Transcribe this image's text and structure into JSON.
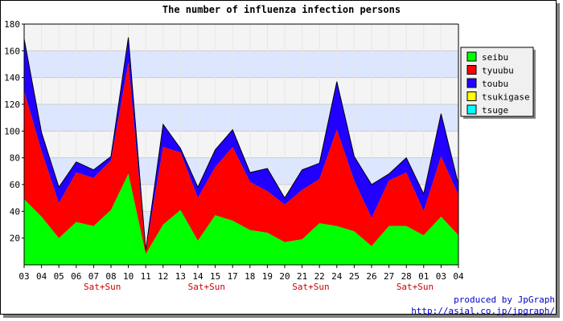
{
  "chart_data": {
    "type": "area",
    "stacked": true,
    "title": "The number of influenza infection persons",
    "xlabel": "",
    "ylabel": "",
    "ylim": [
      0,
      180
    ],
    "yticks": [
      20,
      40,
      60,
      80,
      100,
      120,
      140,
      160,
      180
    ],
    "grid": true,
    "legend_position": "top-right",
    "categories": [
      "03",
      "04",
      "05",
      "06",
      "07",
      "08",
      "10",
      "11",
      "12",
      "13",
      "14",
      "15",
      "17",
      "18",
      "19",
      "20",
      "21",
      "22",
      "24",
      "25",
      "26",
      "27",
      "28",
      "01",
      "03",
      "04"
    ],
    "weekend_marks": [
      {
        "category_index": 4,
        "label": "Sat+Sun"
      },
      {
        "category_index": 10,
        "label": "Sat+Sun"
      },
      {
        "category_index": 16,
        "label": "Sat+Sun"
      },
      {
        "category_index": 22,
        "label": "Sat+Sun"
      }
    ],
    "series": [
      {
        "name": "seibu",
        "color": "#00ff00",
        "values": [
          49,
          36,
          20,
          32,
          29,
          41,
          68,
          8,
          30,
          41,
          18,
          37,
          33,
          26,
          24,
          17,
          19,
          31,
          29,
          25,
          14,
          29,
          29,
          22,
          36,
          22
        ]
      },
      {
        "name": "tyuubu",
        "color": "#ff0000",
        "values": [
          81,
          49,
          26,
          37,
          36,
          37,
          83,
          2,
          58,
          43,
          32,
          36,
          55,
          36,
          31,
          28,
          37,
          33,
          72,
          38,
          21,
          34,
          40,
          18,
          45,
          30
        ]
      },
      {
        "name": "toubu",
        "color": "#2200ff",
        "values": [
          39,
          14,
          12,
          8,
          6,
          3,
          19,
          1,
          17,
          3,
          8,
          13,
          13,
          7,
          17,
          5,
          15,
          12,
          36,
          18,
          25,
          5,
          11,
          13,
          32,
          8
        ]
      },
      {
        "name": "tsukigase",
        "color": "#ffff00",
        "values": [
          0,
          0,
          0,
          0,
          0,
          0,
          0,
          0,
          0,
          0,
          0,
          0,
          0,
          0,
          0,
          0,
          0,
          0,
          0,
          0,
          0,
          0,
          0,
          0,
          0,
          0
        ]
      },
      {
        "name": "tsuge",
        "color": "#00ffff",
        "values": [
          0,
          0,
          0,
          0,
          0,
          0,
          0,
          0,
          0,
          0,
          0,
          0,
          0,
          0,
          0,
          0,
          0,
          0,
          0,
          0,
          0,
          0,
          0,
          0,
          0,
          0
        ]
      }
    ]
  },
  "credits": {
    "line1": "produced by JpGraph",
    "line2": "http://asial.co.jp/jpgraph/"
  }
}
